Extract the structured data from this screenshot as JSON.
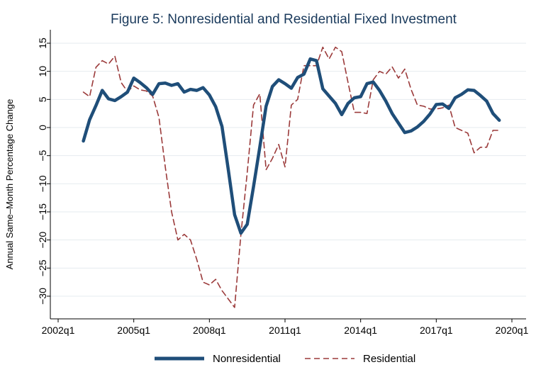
{
  "chart_data": {
    "type": "line",
    "title": "Figure 5: Nonresidential and Residential Fixed Investment",
    "xlabel": "",
    "ylabel": "Annual Same–Month Percentage Change",
    "ylim": [
      -33,
      16
    ],
    "yticks": [
      15,
      10,
      5,
      0,
      -5,
      -10,
      -15,
      -20,
      -25,
      -30
    ],
    "ytick_labels": [
      "15",
      "10",
      "5",
      "0",
      "−5",
      "−10",
      "−15",
      "−20",
      "−25",
      "−30"
    ],
    "xlim": [
      2002.0,
      2020.0
    ],
    "xticks": [
      2002,
      2005,
      2008,
      2011,
      2014,
      2017,
      2020
    ],
    "xtick_labels": [
      "2002q1",
      "2005q1",
      "2008q1",
      "2011q1",
      "2014q1",
      "2017q1",
      "2020q1"
    ],
    "grid": true,
    "legend_position": "bottom",
    "colors": {
      "nonresidential": "#1f4e79",
      "residential": "#9b3a3a",
      "title": "#1a3a5c"
    },
    "series": [
      {
        "name": "Nonresidential",
        "style": "solid",
        "x": [
          2003.0,
          2003.25,
          2003.5,
          2003.75,
          2004.0,
          2004.25,
          2004.5,
          2004.75,
          2005.0,
          2005.25,
          2005.5,
          2005.75,
          2006.0,
          2006.25,
          2006.5,
          2006.75,
          2007.0,
          2007.25,
          2007.5,
          2007.75,
          2008.0,
          2008.25,
          2008.5,
          2008.75,
          2009.0,
          2009.25,
          2009.5,
          2009.75,
          2010.0,
          2010.25,
          2010.5,
          2010.75,
          2011.0,
          2011.25,
          2011.5,
          2011.75,
          2012.0,
          2012.25,
          2012.5,
          2012.75,
          2013.0,
          2013.25,
          2013.5,
          2013.75,
          2014.0,
          2014.25,
          2014.5,
          2014.75,
          2015.0,
          2015.25,
          2015.5,
          2015.75,
          2016.0,
          2016.25,
          2016.5,
          2016.75,
          2017.0,
          2017.25,
          2017.5,
          2017.75,
          2018.0,
          2018.25,
          2018.5,
          2018.75,
          2019.0,
          2019.25,
          2019.5
        ],
        "values": [
          -2.4,
          1.4,
          3.9,
          6.6,
          5.1,
          4.8,
          5.5,
          6.3,
          8.8,
          8.0,
          7.1,
          5.9,
          7.8,
          7.9,
          7.5,
          7.8,
          6.3,
          6.8,
          6.6,
          7.1,
          5.8,
          3.7,
          0.2,
          -7.5,
          -15.5,
          -18.8,
          -17.2,
          -10.5,
          -3.5,
          3.8,
          7.3,
          8.5,
          7.8,
          7.0,
          8.9,
          9.5,
          12.2,
          11.9,
          6.9,
          5.6,
          4.3,
          2.3,
          4.3,
          5.3,
          5.5,
          7.8,
          8.1,
          6.6,
          4.7,
          2.5,
          0.8,
          -0.9,
          -0.6,
          0.1,
          1.1,
          2.4,
          4.1,
          4.2,
          3.4,
          5.3,
          5.9,
          6.7,
          6.6,
          5.7,
          4.7,
          2.5,
          1.3
        ]
      },
      {
        "name": "Residential",
        "style": "dashed",
        "x": [
          2003.0,
          2003.25,
          2003.5,
          2003.75,
          2004.0,
          2004.25,
          2004.5,
          2004.75,
          2005.0,
          2005.25,
          2005.5,
          2005.75,
          2006.0,
          2006.25,
          2006.5,
          2006.75,
          2007.0,
          2007.25,
          2007.5,
          2007.75,
          2008.0,
          2008.25,
          2008.5,
          2008.75,
          2009.0,
          2009.25,
          2009.5,
          2009.75,
          2010.0,
          2010.25,
          2010.5,
          2010.75,
          2011.0,
          2011.25,
          2011.5,
          2011.75,
          2012.0,
          2012.25,
          2012.5,
          2012.75,
          2013.0,
          2013.25,
          2013.5,
          2013.75,
          2014.0,
          2014.25,
          2014.5,
          2014.75,
          2015.0,
          2015.25,
          2015.5,
          2015.75,
          2016.0,
          2016.25,
          2016.5,
          2016.75,
          2017.0,
          2017.25,
          2017.5,
          2017.75,
          2018.0,
          2018.25,
          2018.5,
          2018.75,
          2019.0,
          2019.25,
          2019.5
        ],
        "values": [
          6.3,
          5.5,
          10.7,
          11.9,
          11.3,
          12.7,
          8.0,
          6.4,
          7.4,
          6.7,
          6.5,
          5.6,
          1.8,
          -7.0,
          -15.0,
          -20.0,
          -19.0,
          -20.0,
          -23.5,
          -27.5,
          -28.0,
          -27.0,
          -29.0,
          -30.5,
          -32.0,
          -19.0,
          -8.0,
          4.0,
          6.0,
          -7.5,
          -5.5,
          -3.0,
          -7.0,
          4.0,
          5.0,
          11.0,
          11.0,
          11.0,
          14.3,
          12.2,
          14.3,
          13.5,
          8.0,
          2.7,
          2.7,
          2.5,
          8.5,
          10.0,
          9.5,
          10.8,
          8.8,
          10.4,
          6.8,
          4.0,
          3.8,
          3.3,
          3.3,
          3.5,
          4.0,
          0.0,
          -0.5,
          -1.0,
          -4.5,
          -3.5,
          -3.5,
          -0.5,
          -0.5
        ]
      }
    ]
  }
}
